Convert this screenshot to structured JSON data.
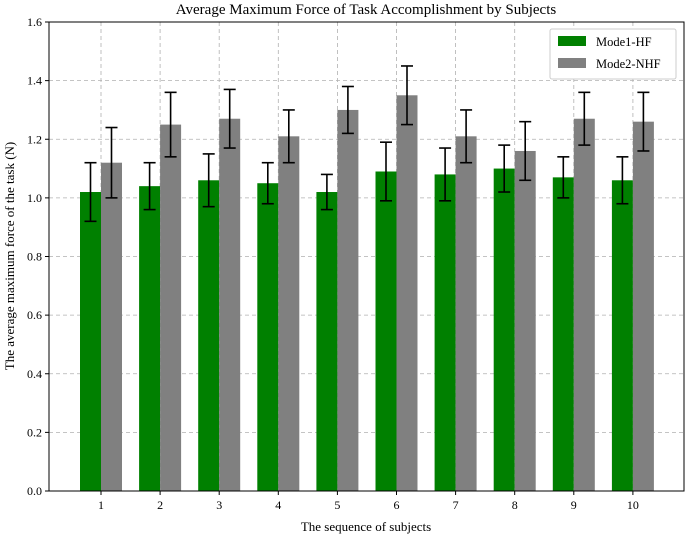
{
  "chart_data": {
    "type": "bar",
    "title": "Average Maximum Force of Task Accomplishment by Subjects",
    "xlabel": "The sequence of subjects",
    "ylabel": "The average maximum force of the task (N)",
    "categories": [
      "1",
      "2",
      "3",
      "4",
      "5",
      "6",
      "7",
      "8",
      "9",
      "10"
    ],
    "ylim": [
      0,
      1.6
    ],
    "yticks": [
      "0.0",
      "0.2",
      "0.4",
      "0.6",
      "0.8",
      "1.0",
      "1.2",
      "1.4",
      "1.6"
    ],
    "grid": true,
    "legend_position": "top-right",
    "series": [
      {
        "name": "Mode1-HF",
        "color": "#008000",
        "values": [
          1.02,
          1.04,
          1.06,
          1.05,
          1.02,
          1.09,
          1.08,
          1.1,
          1.07,
          1.06
        ],
        "errors": [
          0.1,
          0.08,
          0.09,
          0.07,
          0.06,
          0.1,
          0.09,
          0.08,
          0.07,
          0.08
        ]
      },
      {
        "name": "Mode2-NHF",
        "color": "#808080",
        "values": [
          1.12,
          1.25,
          1.27,
          1.21,
          1.3,
          1.35,
          1.21,
          1.16,
          1.27,
          1.26
        ],
        "errors": [
          0.12,
          0.11,
          0.1,
          0.09,
          0.08,
          0.1,
          0.09,
          0.1,
          0.09,
          0.1
        ]
      }
    ]
  }
}
